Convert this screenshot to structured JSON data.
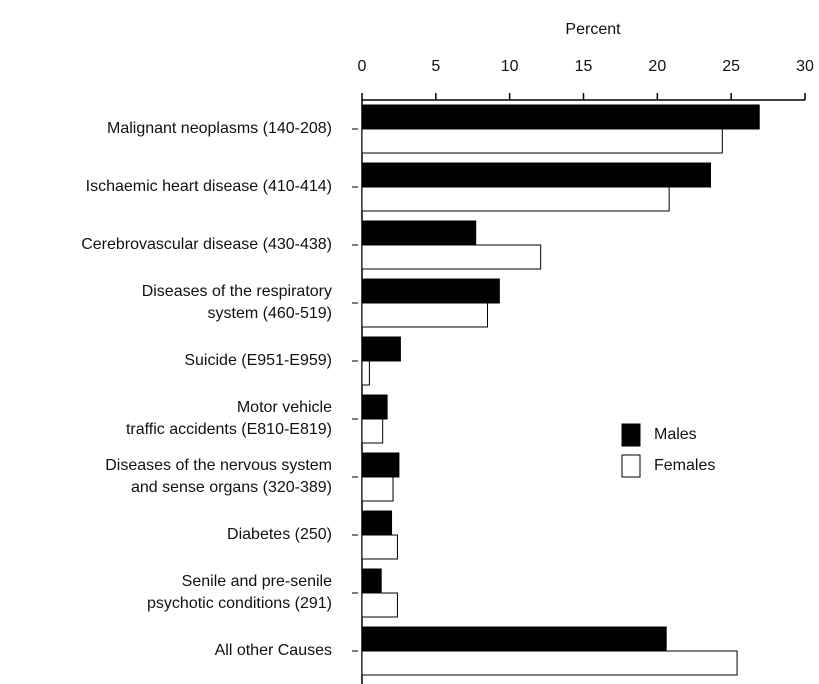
{
  "chart_data": {
    "type": "bar",
    "orientation": "horizontal",
    "x_label": "Percent",
    "categories": [
      [
        "Malignant neoplasms (140-208)"
      ],
      [
        "Ischaemic heart disease (410-414)"
      ],
      [
        "Cerebrovascular disease (430-438)"
      ],
      [
        "Diseases of the respiratory",
        "system (460-519)"
      ],
      [
        "Suicide (E951-E959)"
      ],
      [
        "Motor vehicle",
        "traffic accidents (E810-E819)"
      ],
      [
        "Diseases of the nervous system",
        "and sense organs (320-389)"
      ],
      [
        "Diabetes (250)"
      ],
      [
        "Senile and pre-senile",
        "psychotic conditions (291)"
      ],
      [
        "All other Causes"
      ]
    ],
    "series": [
      {
        "name": "Males",
        "color": "#000000",
        "values": [
          26.9,
          23.6,
          7.7,
          9.3,
          2.6,
          1.7,
          2.5,
          2.0,
          1.3,
          20.6
        ]
      },
      {
        "name": "Females",
        "color": "#ffffff",
        "values": [
          24.4,
          20.8,
          12.1,
          8.5,
          0.5,
          1.4,
          2.1,
          2.4,
          2.4,
          25.4
        ]
      }
    ],
    "xlim": [
      0,
      30
    ],
    "xticks": [
      0,
      5,
      10,
      15,
      20,
      25,
      30
    ],
    "legend": "right"
  }
}
